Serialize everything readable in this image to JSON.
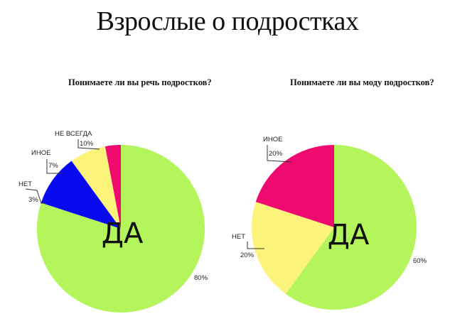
{
  "title": "Взрослые о подростках",
  "chart_data": [
    {
      "type": "pie",
      "title": "Понимаете ли вы речь подростков?",
      "slices": [
        {
          "label": "ДА",
          "value": 80,
          "value_label": "80%",
          "color": "#b3f55a"
        },
        {
          "label": "НЕ ВСЕГДА",
          "value": 10,
          "value_label": "10%",
          "color": "#0a0aee"
        },
        {
          "label": "ИНОЕ",
          "value": 7,
          "value_label": "7%",
          "color": "#fbf37a"
        },
        {
          "label": "НЕТ",
          "value": 3,
          "value_label": "3%",
          "color": "#ee0a6e"
        }
      ]
    },
    {
      "type": "pie",
      "title": "Понимаете ли вы моду подростков?",
      "slices": [
        {
          "label": "ДА",
          "value": 60,
          "value_label": "60%",
          "color": "#b3f55a"
        },
        {
          "label": "ИНОЕ",
          "value": 20,
          "value_label": "20%",
          "color": "#fbf37a"
        },
        {
          "label": "НЕТ",
          "value": 20,
          "value_label": "20%",
          "color": "#ee0a6e"
        }
      ]
    }
  ]
}
